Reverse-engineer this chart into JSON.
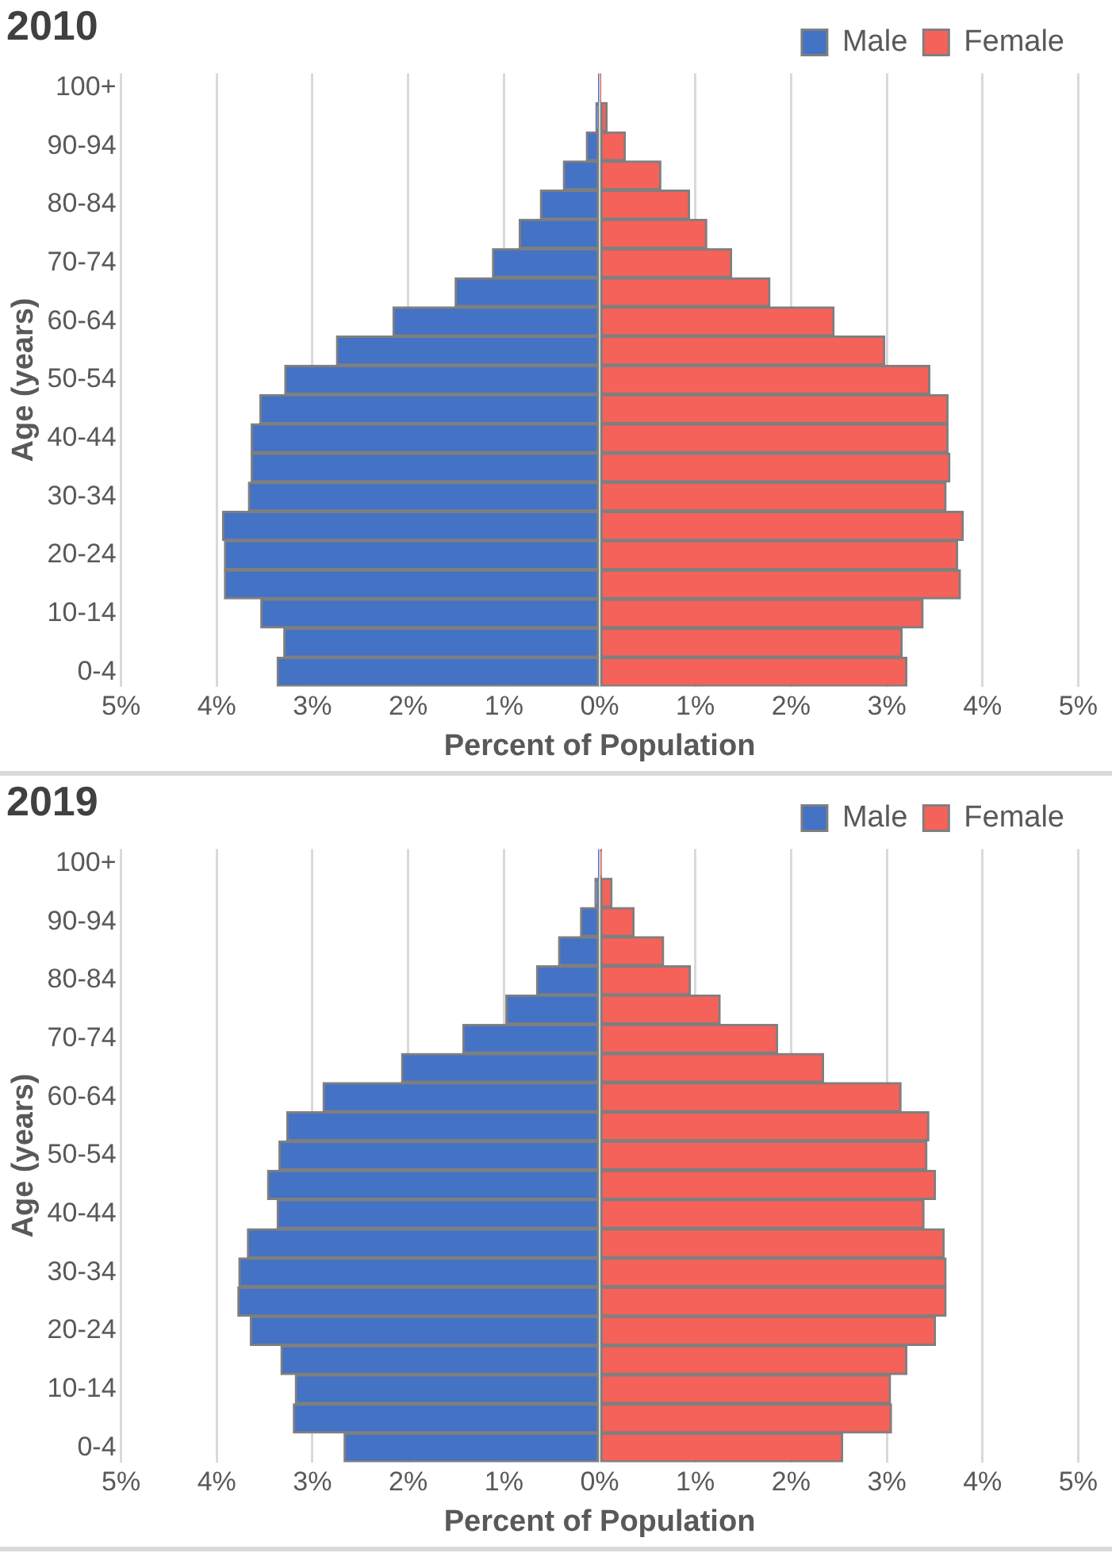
{
  "chart_data": [
    {
      "type": "bar",
      "title": "2010",
      "xlabel": "Percent of Population",
      "ylabel": "Age (years)",
      "orientation": "horizontal",
      "stacked": true,
      "legend": "top right",
      "grid": "x",
      "categories": [
        "100+",
        null,
        "90-94",
        null,
        "80-84",
        null,
        "70-74",
        null,
        "60-64",
        null,
        "50-54",
        null,
        "40-44",
        null,
        "30-34",
        null,
        "20-24",
        null,
        "10-14",
        null,
        "0-4"
      ],
      "xlim": [
        -5,
        5
      ],
      "xticks": [
        {
          "value": -5,
          "label": "5%"
        },
        {
          "value": -4,
          "label": "4%"
        },
        {
          "value": -3,
          "label": "3%"
        },
        {
          "value": -2,
          "label": "2%"
        },
        {
          "value": -1,
          "label": "1%"
        },
        {
          "value": 0,
          "label": "0%"
        },
        {
          "value": 1,
          "label": "1%"
        },
        {
          "value": 2,
          "label": "2%"
        },
        {
          "value": 3,
          "label": "3%"
        },
        {
          "value": 4,
          "label": "4%"
        },
        {
          "value": 5,
          "label": "5%"
        }
      ],
      "series": [
        {
          "name": "Male",
          "color": "#4472c4",
          "values": [
            -0.01,
            -0.04,
            -0.14,
            -0.38,
            -0.62,
            -0.84,
            -1.12,
            -1.51,
            -2.16,
            -2.75,
            -3.29,
            -3.55,
            -3.64,
            -3.64,
            -3.67,
            -3.94,
            -3.92,
            -3.92,
            -3.54,
            -3.3,
            -3.37
          ]
        },
        {
          "name": "Female",
          "color": "#f4625a",
          "values": [
            0.01,
            0.08,
            0.27,
            0.64,
            0.94,
            1.12,
            1.38,
            1.78,
            2.45,
            2.98,
            3.45,
            3.64,
            3.64,
            3.66,
            3.62,
            3.8,
            3.74,
            3.77,
            3.38,
            3.16,
            3.21
          ]
        }
      ]
    },
    {
      "type": "bar",
      "title": "2019",
      "xlabel": "Percent of Population",
      "ylabel": "Age (years)",
      "orientation": "horizontal",
      "stacked": true,
      "legend": "top right",
      "grid": "x",
      "categories": [
        "100+",
        null,
        "90-94",
        null,
        "80-84",
        null,
        "70-74",
        null,
        "60-64",
        null,
        "50-54",
        null,
        "40-44",
        null,
        "30-34",
        null,
        "20-24",
        null,
        "10-14",
        null,
        "0-4"
      ],
      "xlim": [
        -5,
        5
      ],
      "xticks": [
        {
          "value": -5,
          "label": "5%"
        },
        {
          "value": -4,
          "label": "4%"
        },
        {
          "value": -3,
          "label": "3%"
        },
        {
          "value": -2,
          "label": "2%"
        },
        {
          "value": -1,
          "label": "1%"
        },
        {
          "value": 0,
          "label": "0%"
        },
        {
          "value": 1,
          "label": "1%"
        },
        {
          "value": 2,
          "label": "2%"
        },
        {
          "value": 3,
          "label": "3%"
        },
        {
          "value": 4,
          "label": "4%"
        },
        {
          "value": 5,
          "label": "5%"
        }
      ],
      "series": [
        {
          "name": "Male",
          "color": "#4472c4",
          "values": [
            -0.01,
            -0.05,
            -0.2,
            -0.43,
            -0.66,
            -0.98,
            -1.43,
            -2.07,
            -2.89,
            -3.27,
            -3.35,
            -3.47,
            -3.37,
            -3.68,
            -3.77,
            -3.78,
            -3.65,
            -3.33,
            -3.18,
            -3.2,
            -2.67
          ]
        },
        {
          "name": "Female",
          "color": "#f4625a",
          "values": [
            0.02,
            0.13,
            0.36,
            0.67,
            0.95,
            1.26,
            1.86,
            2.34,
            3.15,
            3.44,
            3.42,
            3.51,
            3.39,
            3.6,
            3.62,
            3.62,
            3.51,
            3.21,
            3.04,
            3.05,
            2.54
          ]
        }
      ]
    }
  ]
}
